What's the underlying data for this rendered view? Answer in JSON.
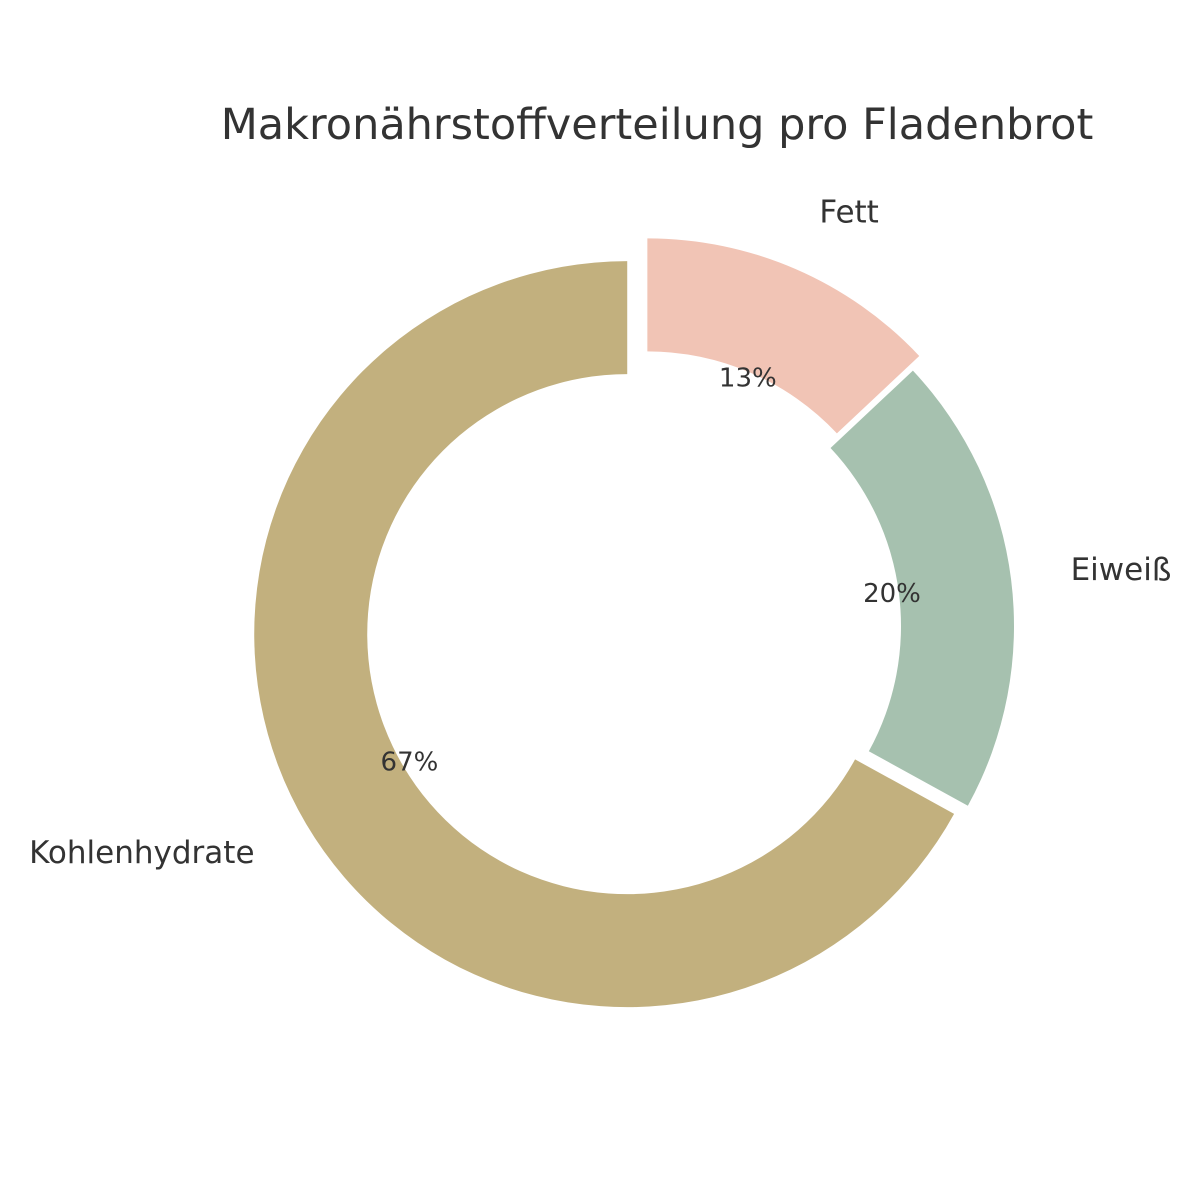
{
  "chart_data": {
    "type": "pie",
    "style": "donut",
    "title": "Makronährstoffverteilung pro Fladenbrot",
    "categories": [
      "Fett",
      "Eiweiß",
      "Kohlenhydrate"
    ],
    "values": [
      13,
      20,
      67
    ],
    "value_labels": [
      "13%",
      "20%",
      "67%"
    ],
    "colors": [
      "#f1c4b5",
      "#a6c1af",
      "#c2b07e"
    ],
    "exploded": [
      true,
      false,
      true
    ],
    "start": "top, clockwise",
    "legend": "none"
  }
}
